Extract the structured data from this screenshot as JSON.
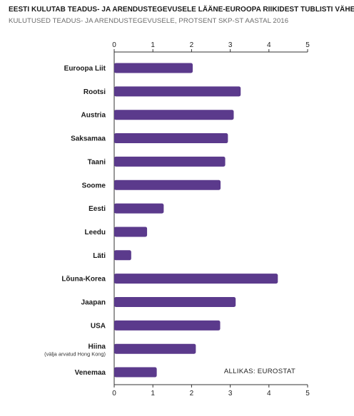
{
  "chart_data": {
    "type": "bar",
    "orientation": "horizontal",
    "title": "EESTI KULUTAB TEADUS- JA ARENDUSTEGEVUSELE LÄÄNE-EUROOPA RIIKIDEST TUBLISTI VÄHEM",
    "subtitle": "KULUTUSED TEADUS- JA ARENDUSTEGEVUSELE, PROTSENT SKP-ST AASTAL 2016",
    "categories": [
      "Euroopa Liit",
      "Rootsi",
      "Austria",
      "Saksamaa",
      "Taani",
      "Soome",
      "Eesti",
      "Leedu",
      "Läti",
      "Lõuna-Korea",
      "Jaapan",
      "USA",
      "Hiina",
      "Venemaa"
    ],
    "category_notes": {
      "Hiina": "(välja arvatud Hong Kong)"
    },
    "values": [
      2.03,
      3.27,
      3.09,
      2.94,
      2.87,
      2.75,
      1.28,
      0.85,
      0.44,
      4.23,
      3.14,
      2.74,
      2.11,
      1.1
    ],
    "x_ticks": [
      "0",
      "1",
      "2",
      "3",
      "4",
      "5"
    ],
    "xlim": [
      0,
      5
    ],
    "xlabel": "",
    "ylabel": "",
    "grid": false,
    "bar_color": "#5b3a8c",
    "source": "ALLIKAS: EUROSTAT"
  }
}
